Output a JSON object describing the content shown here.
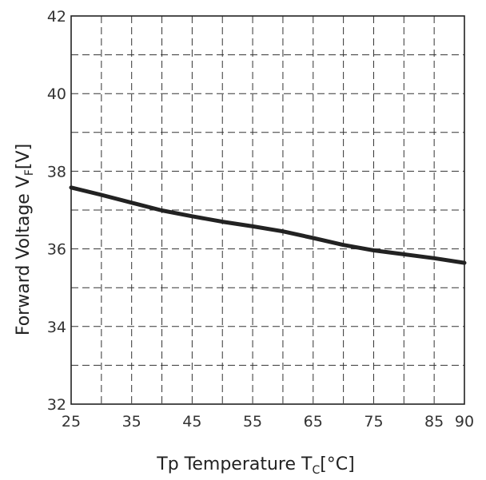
{
  "chart_data": {
    "type": "line",
    "title": "",
    "xlabel": "Tp Temperature T",
    "xlabel_sub": "C",
    "xlabel_unit": "[°C]",
    "ylabel": "Forward Voltage V",
    "ylabel_sub": "F",
    "ylabel_unit": "[V]",
    "xlim": [
      25,
      90
    ],
    "ylim": [
      32,
      42
    ],
    "x_ticks": [
      25,
      35,
      45,
      55,
      65,
      75,
      85,
      90
    ],
    "x_tick_labels": [
      "25",
      "35",
      "45",
      "55",
      "65",
      "75",
      "85",
      "90"
    ],
    "x_grid": [
      25,
      30,
      35,
      40,
      45,
      50,
      55,
      60,
      65,
      70,
      75,
      80,
      85,
      90
    ],
    "y_ticks": [
      32,
      34,
      36,
      38,
      40,
      42
    ],
    "y_tick_labels": [
      "32",
      "34",
      "36",
      "38",
      "40",
      "42"
    ],
    "y_grid": [
      32,
      33,
      34,
      35,
      36,
      37,
      38,
      39,
      40,
      41,
      42
    ],
    "grid": true,
    "grid_style": "dashed",
    "legend": "none",
    "series": [
      {
        "color": "#222222",
        "x": [
          25,
          30,
          35,
          40,
          45,
          50,
          55,
          60,
          65,
          70,
          75,
          80,
          85,
          90
        ],
        "values": [
          37.58,
          37.39,
          37.19,
          36.99,
          36.84,
          36.7,
          36.58,
          36.45,
          36.28,
          36.1,
          35.96,
          35.86,
          35.76,
          35.64
        ]
      }
    ]
  }
}
